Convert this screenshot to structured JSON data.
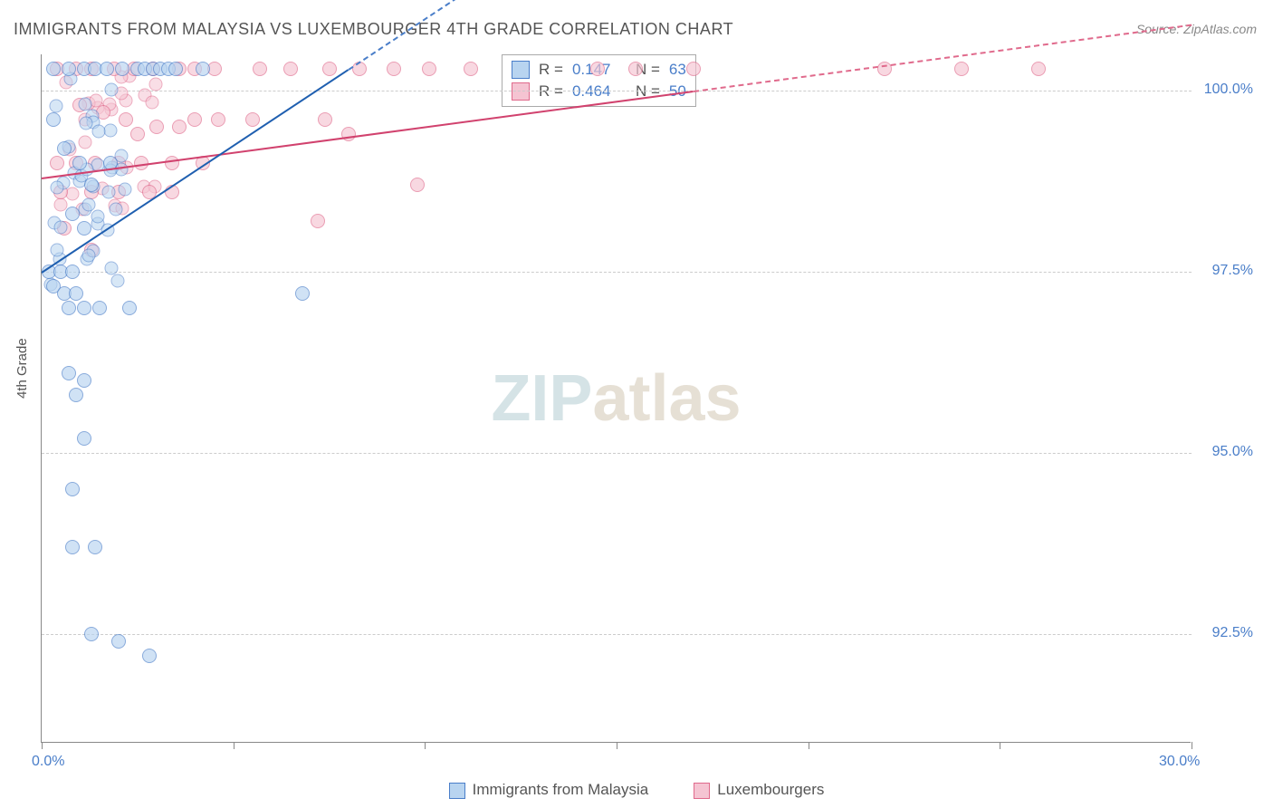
{
  "title": "IMMIGRANTS FROM MALAYSIA VS LUXEMBOURGER 4TH GRADE CORRELATION CHART",
  "source": "Source: ZipAtlas.com",
  "watermark_a": "ZIP",
  "watermark_b": "atlas",
  "chart": {
    "type": "scatter",
    "ylabel": "4th Grade",
    "background_color": "#ffffff",
    "grid_color": "#cccccc",
    "axis_color": "#888888",
    "tick_label_color": "#4a7ec9",
    "xlim": [
      0.0,
      30.0
    ],
    "ylim": [
      91.0,
      100.5
    ],
    "xticks": [
      0.0,
      30.0
    ],
    "xtick_labels": [
      "0.0%",
      "30.0%"
    ],
    "yticks": [
      92.5,
      95.0,
      97.5,
      100.0
    ],
    "ytick_labels": [
      "92.5%",
      "95.0%",
      "97.5%",
      "100.0%"
    ],
    "marker_radius": 8,
    "series": [
      {
        "name": "Immigrants from Malaysia",
        "fill_color": "#b8d4f0",
        "stroke_color": "#4a7ec9",
        "line_color": "#1f5fb0",
        "R": "0.147",
        "N": "63",
        "trend": {
          "x1": 0.0,
          "y1": 97.5,
          "x2": 8.0,
          "y2": 100.3,
          "extend_to_x": 12.0
        },
        "dense_cluster": {
          "count": 40,
          "x_range": [
            0.2,
            2.2
          ],
          "y_range": [
            97.2,
            100.3
          ]
        },
        "points": [
          [
            0.3,
            100.3
          ],
          [
            0.7,
            100.3
          ],
          [
            1.1,
            100.3
          ],
          [
            1.4,
            100.3
          ],
          [
            1.7,
            100.3
          ],
          [
            2.1,
            100.3
          ],
          [
            2.5,
            100.3
          ],
          [
            2.7,
            100.3
          ],
          [
            2.9,
            100.3
          ],
          [
            3.1,
            100.3
          ],
          [
            3.3,
            100.3
          ],
          [
            3.5,
            100.3
          ],
          [
            4.2,
            100.3
          ],
          [
            0.3,
            99.6
          ],
          [
            0.6,
            99.2
          ],
          [
            1.0,
            99.0
          ],
          [
            1.3,
            98.7
          ],
          [
            1.8,
            99.0
          ],
          [
            0.8,
            98.3
          ],
          [
            1.1,
            98.1
          ],
          [
            0.2,
            97.5
          ],
          [
            0.5,
            97.5
          ],
          [
            0.8,
            97.5
          ],
          [
            0.3,
            97.3
          ],
          [
            0.6,
            97.2
          ],
          [
            0.9,
            97.2
          ],
          [
            0.7,
            97.0
          ],
          [
            1.1,
            97.0
          ],
          [
            1.5,
            97.0
          ],
          [
            2.3,
            97.0
          ],
          [
            6.8,
            97.2
          ],
          [
            0.7,
            96.1
          ],
          [
            1.1,
            96.0
          ],
          [
            0.9,
            95.8
          ],
          [
            1.1,
            95.2
          ],
          [
            0.8,
            94.5
          ],
          [
            0.8,
            93.7
          ],
          [
            1.4,
            93.7
          ],
          [
            1.3,
            92.5
          ],
          [
            2.0,
            92.4
          ],
          [
            2.8,
            92.2
          ]
        ]
      },
      {
        "name": "Luxembourgers",
        "fill_color": "#f5c4d2",
        "stroke_color": "#e06a8c",
        "line_color": "#d1426e",
        "R": "0.464",
        "N": "50",
        "trend": {
          "x1": 0.0,
          "y1": 98.8,
          "x2": 17.0,
          "y2": 100.0,
          "extend_to_x": 30.0
        },
        "dense_cluster": {
          "count": 25,
          "x_range": [
            0.3,
            3.0
          ],
          "y_range": [
            98.3,
            100.3
          ]
        },
        "points": [
          [
            0.4,
            100.3
          ],
          [
            0.9,
            100.3
          ],
          [
            1.3,
            100.3
          ],
          [
            1.9,
            100.3
          ],
          [
            2.4,
            100.3
          ],
          [
            2.9,
            100.3
          ],
          [
            3.6,
            100.3
          ],
          [
            4.0,
            100.3
          ],
          [
            4.5,
            100.3
          ],
          [
            5.7,
            100.3
          ],
          [
            6.5,
            100.3
          ],
          [
            7.5,
            100.3
          ],
          [
            8.3,
            100.3
          ],
          [
            9.2,
            100.3
          ],
          [
            10.1,
            100.3
          ],
          [
            11.2,
            100.3
          ],
          [
            14.5,
            100.3
          ],
          [
            15.5,
            100.3
          ],
          [
            17.0,
            100.3
          ],
          [
            22.0,
            100.3
          ],
          [
            24.0,
            100.3
          ],
          [
            26.0,
            100.3
          ],
          [
            1.0,
            99.8
          ],
          [
            1.6,
            99.7
          ],
          [
            2.2,
            99.6
          ],
          [
            2.5,
            99.4
          ],
          [
            3.0,
            99.5
          ],
          [
            3.6,
            99.5
          ],
          [
            4.0,
            99.6
          ],
          [
            4.6,
            99.6
          ],
          [
            5.5,
            99.6
          ],
          [
            7.4,
            99.6
          ],
          [
            8.0,
            99.4
          ],
          [
            0.4,
            99.0
          ],
          [
            0.9,
            99.0
          ],
          [
            1.4,
            99.0
          ],
          [
            2.0,
            99.0
          ],
          [
            2.6,
            99.0
          ],
          [
            3.4,
            99.0
          ],
          [
            4.2,
            99.0
          ],
          [
            0.5,
            98.6
          ],
          [
            1.3,
            98.6
          ],
          [
            2.0,
            98.6
          ],
          [
            2.8,
            98.6
          ],
          [
            3.4,
            98.6
          ],
          [
            9.8,
            98.7
          ],
          [
            0.6,
            98.1
          ],
          [
            1.3,
            97.8
          ],
          [
            7.2,
            98.2
          ]
        ]
      }
    ]
  },
  "stats_box": {
    "label_R": "R =",
    "label_N": "N ="
  },
  "legend_bottom": [
    {
      "label": "Immigrants from Malaysia",
      "fill": "#b8d4f0",
      "stroke": "#4a7ec9"
    },
    {
      "label": "Luxembourgers",
      "fill": "#f5c4d2",
      "stroke": "#e06a8c"
    }
  ]
}
